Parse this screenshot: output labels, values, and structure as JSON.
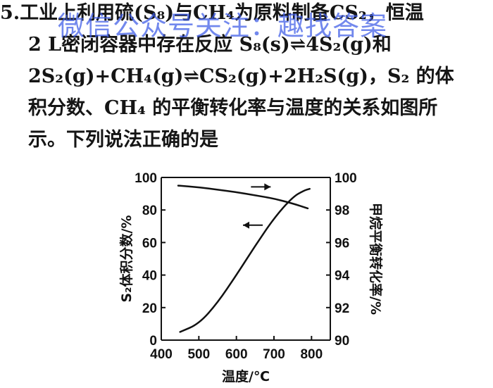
{
  "question": {
    "lines": [
      "5.工业上利用硫(S₈)与CH₄为原料制备CS₂，恒温",
      "2 L密闭容器中存在反应 S₈(s)⇌4S₂(g)和",
      "2S₂(g)+CH₄(g)⇌CS₂(g)+2H₂S(g)，S₂ 的体",
      "积分数、CH₄ 的平衡转化率与温度的关系如图所",
      "示。下列说法正确的是"
    ]
  },
  "watermark": {
    "text": "微信公众号关注：趣找答案",
    "color": "#4a6ae6"
  },
  "chart_data": {
    "type": "line",
    "xlabel": "温度/℃",
    "ylabel_left": "S₂体积分数/%",
    "ylabel_right": "甲烷平衡转化率/%",
    "x_ticks": [
      "400",
      "500",
      "600",
      "700",
      "800"
    ],
    "y_left_ticks": [
      "0",
      "20",
      "40",
      "60",
      "80",
      "100"
    ],
    "y_right_ticks": [
      "90",
      "92",
      "94",
      "96",
      "98",
      "100"
    ],
    "xlim": [
      400,
      850
    ],
    "ylim_left": [
      0,
      100
    ],
    "ylim_right": [
      90,
      100
    ],
    "series": [
      {
        "axis": "left",
        "x": [
          445,
          500,
          550,
          600,
          650,
          700,
          750,
          790
        ],
        "y": [
          95,
          94,
          92.5,
          91,
          89,
          87,
          84,
          81
        ]
      },
      {
        "axis": "right",
        "x": [
          450,
          500,
          550,
          600,
          650,
          700,
          750,
          780,
          795
        ],
        "y": [
          90.5,
          91.0,
          92.3,
          94.0,
          95.8,
          97.5,
          98.8,
          99.2,
          99.3
        ]
      }
    ],
    "arrows": [
      {
        "series": 0,
        "direction": "right"
      },
      {
        "series": 1,
        "direction": "left"
      }
    ]
  }
}
